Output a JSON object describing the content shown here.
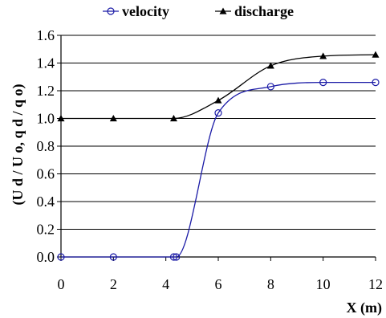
{
  "chart_data": {
    "type": "line",
    "xlabel": "X (m)",
    "ylabel": "(U d / U o, q d / q o)",
    "xlim": [
      0,
      12
    ],
    "ylim": [
      0,
      1.6
    ],
    "x_ticks": [
      "0",
      "2",
      "4",
      "6",
      "8",
      "10",
      "12"
    ],
    "y_ticks": [
      "0.0",
      "0.2",
      "0.4",
      "0.6",
      "0.8",
      "1.0",
      "1.2",
      "1.4",
      "1.6"
    ],
    "grid": "horizontal",
    "legend_position": "top",
    "series": [
      {
        "name": "velocity",
        "marker": "circle",
        "color": "#1a1aa6",
        "x": [
          0,
          2,
          4.3,
          4.4,
          6,
          8,
          10,
          12
        ],
        "y": [
          0.0,
          0.0,
          0.0,
          0.0,
          1.04,
          1.23,
          1.26,
          1.26
        ]
      },
      {
        "name": "discharge",
        "marker": "triangle",
        "color": "#000000",
        "x": [
          0,
          2,
          4.3,
          6,
          8,
          10,
          12
        ],
        "y": [
          1.0,
          1.0,
          1.0,
          1.13,
          1.38,
          1.45,
          1.46
        ]
      }
    ]
  }
}
